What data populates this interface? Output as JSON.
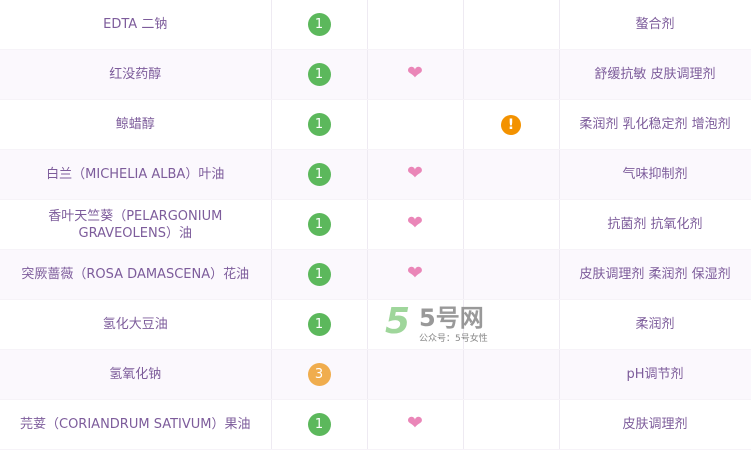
{
  "colors": {
    "safe": "#5cb85c",
    "moderate": "#f0ad4e",
    "heart": "#ea86b8",
    "warning": "#f39200",
    "text": "#7d5c9b"
  },
  "rows": [
    {
      "name": "EDTA 二钠",
      "score": "1",
      "level": "safe",
      "active": false,
      "acne": false,
      "purpose": "螯合剂"
    },
    {
      "name": "红没药醇",
      "score": "1",
      "level": "safe",
      "active": true,
      "acne": false,
      "purpose": "舒缓抗敏 皮肤调理剂"
    },
    {
      "name": "鲸蜡醇",
      "score": "1",
      "level": "safe",
      "active": false,
      "acne": true,
      "purpose": "柔润剂 乳化稳定剂 增泡剂"
    },
    {
      "name": "白兰（MICHELIA ALBA）叶油",
      "score": "1",
      "level": "safe",
      "active": true,
      "acne": false,
      "purpose": "气味抑制剂"
    },
    {
      "name": "香叶天竺葵（PELARGONIUM GRAVEOLENS）油",
      "score": "1",
      "level": "safe",
      "active": true,
      "acne": false,
      "purpose": "抗菌剂 抗氧化剂"
    },
    {
      "name": "突厥蔷薇（ROSA DAMASCENA）花油",
      "score": "1",
      "level": "safe",
      "active": true,
      "acne": false,
      "purpose": "皮肤调理剂 柔润剂 保湿剂"
    },
    {
      "name": "氢化大豆油",
      "score": "1",
      "level": "safe",
      "active": false,
      "acne": false,
      "purpose": "柔润剂"
    },
    {
      "name": "氢氧化钠",
      "score": "3",
      "level": "moderate",
      "active": false,
      "acne": false,
      "purpose": "pH调节剂"
    },
    {
      "name": "芫荽（CORIANDRUM SATIVUM）果油",
      "score": "1",
      "level": "safe",
      "active": true,
      "acne": false,
      "purpose": "皮肤调理剂"
    }
  ],
  "icons": {
    "active": "heart-icon",
    "acne": "exclamation-icon"
  },
  "watermark": {
    "logo": "5号网",
    "sub": "公众号：5号女性"
  }
}
